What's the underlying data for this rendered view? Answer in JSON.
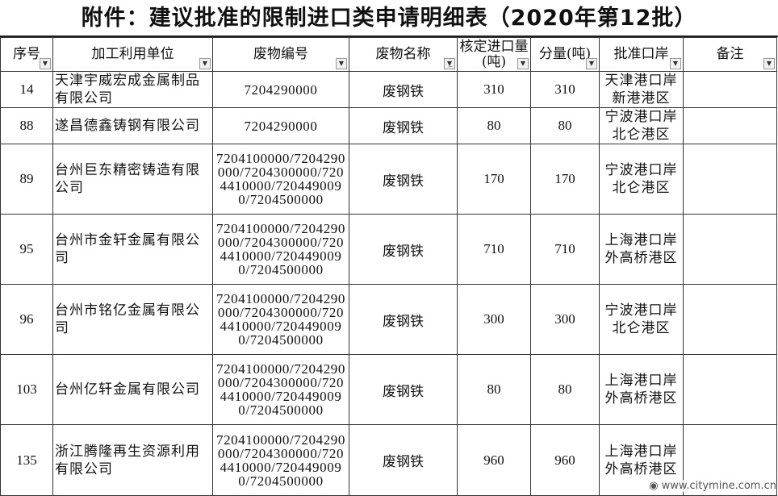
{
  "title": "附件：建议批准的限制进口类申请明细表（2020年第12批）",
  "headers": [
    "序号",
    "加工利用单位",
    "废物编号",
    "废物名称",
    "核定进口量(吨)",
    "分量(吨)",
    "批准口岸",
    "备注"
  ],
  "rows": [
    {
      "no": "14",
      "company": "天津宇威宏成金属制品有限公司",
      "code": "7204290000",
      "name": "废钢铁",
      "approved": "310",
      "portion": "310",
      "port": "天津港口岸新港港区",
      "note": ""
    },
    {
      "no": "88",
      "company": "遂昌德鑫铸钢有限公司",
      "code": "7204290000",
      "name": "废钢铁",
      "approved": "80",
      "portion": "80",
      "port": "宁波港口岸北仑港区",
      "note": ""
    },
    {
      "no": "89",
      "company": "台州巨东精密铸造有限公司",
      "code": "7204100000/7204290000/7204300000/7204410000/7204490090/7204500000",
      "name": "废钢铁",
      "approved": "170",
      "portion": "170",
      "port": "宁波港口岸北仑港区",
      "note": ""
    },
    {
      "no": "95",
      "company": "台州市金轩金属有限公司",
      "code": "7204100000/7204290000/7204300000/7204410000/7204490090/7204500000",
      "name": "废钢铁",
      "approved": "710",
      "portion": "710",
      "port": "上海港口岸外高桥港区",
      "note": ""
    },
    {
      "no": "96",
      "company": "台州市铭亿金属有限公司",
      "code": "7204100000/7204290000/7204300000/7204410000/7204490090/7204500000",
      "name": "废钢铁",
      "approved": "300",
      "portion": "300",
      "port": "宁波港口岸北仑港区",
      "note": ""
    },
    {
      "no": "103",
      "company": "台州亿轩金属有限公司",
      "code": "7204100000/7204290000/7204300000/7204410000/7204490090/7204500000",
      "name": "废钢铁",
      "approved": "80",
      "portion": "80",
      "port": "上海港口岸外高桥港区",
      "note": ""
    },
    {
      "no": "135",
      "company": "浙江腾隆再生资源利用有限公司",
      "code": "7204100000/7204290000/7204300000/7204410000/7204490090/7204500000",
      "name": "废钢铁",
      "approved": "960",
      "portion": "960",
      "port": "上海港口岸外高桥港区",
      "note": ""
    }
  ],
  "watermark": "www.citymine.com.cn",
  "icons": {
    "filter_dropdown": "dropdown-arrow-icon",
    "active_filter": "filter-icon"
  }
}
